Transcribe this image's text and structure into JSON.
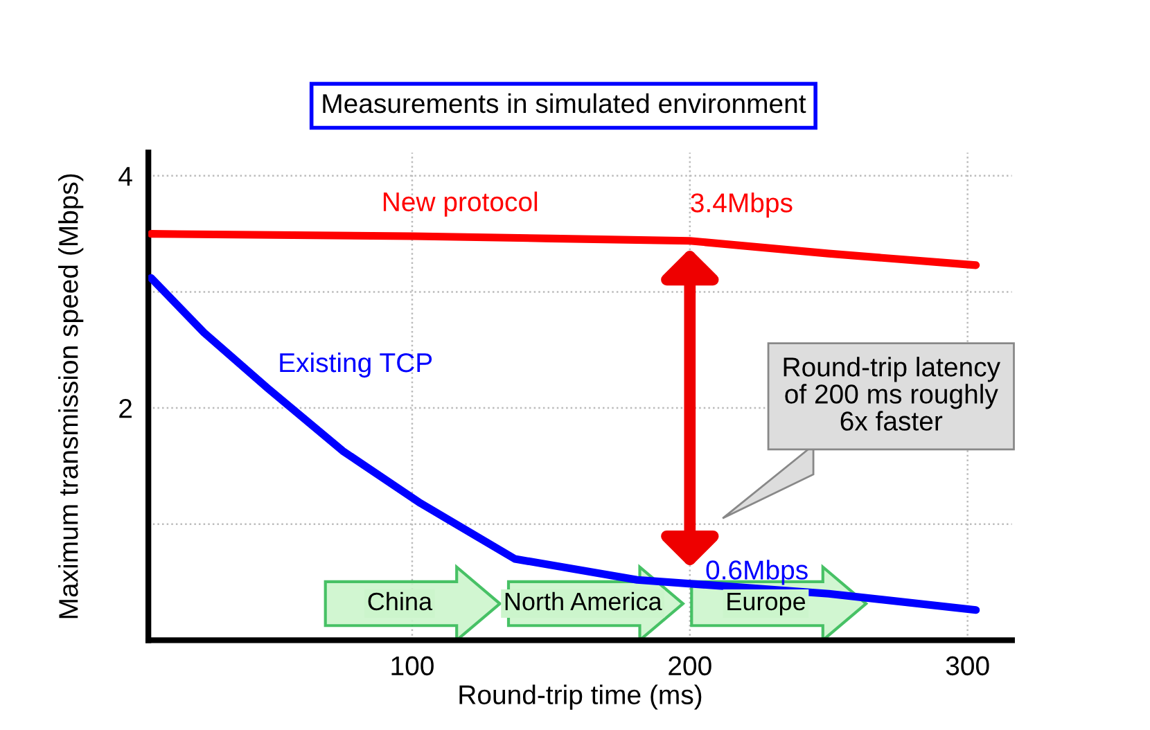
{
  "chart_data": {
    "type": "line",
    "title": "Measurements in simulated environment",
    "xlabel": "Round-trip time (ms)",
    "ylabel": "Maximum transmission speed (Mbps)",
    "xlim": [
      5,
      316
    ],
    "ylim": [
      0,
      4.2
    ],
    "xticks": [
      100,
      200,
      300
    ],
    "yticks": [
      {
        "value": 1,
        "label": null
      },
      2,
      {
        "value": 3,
        "label": null
      },
      4
    ],
    "grid": true,
    "marker": "none",
    "line_style": "solid",
    "series": [
      {
        "name": "New protocol",
        "color": "#ff0000",
        "x": [
          6,
          50,
          100,
          150,
          200,
          250,
          303
        ],
        "values": [
          3.5,
          3.49,
          3.48,
          3.46,
          3.44,
          3.33,
          3.23
        ]
      },
      {
        "name": "Existing TCP",
        "color": "#0000ff",
        "x": [
          6,
          25,
          48,
          75,
          103,
          137,
          181,
          250,
          303
        ],
        "values": [
          3.12,
          2.65,
          2.17,
          1.63,
          1.18,
          0.7,
          0.52,
          0.4,
          0.26
        ]
      }
    ],
    "annotations": [
      {
        "text": "3.4Mbps",
        "x": 200,
        "y": 3.44
      },
      {
        "text": "0.6Mbps",
        "x": 200,
        "y": 0.56
      },
      "Round-trip latency of 200 ms roughly 6x faster",
      "China",
      "North America",
      "Europe"
    ]
  }
}
